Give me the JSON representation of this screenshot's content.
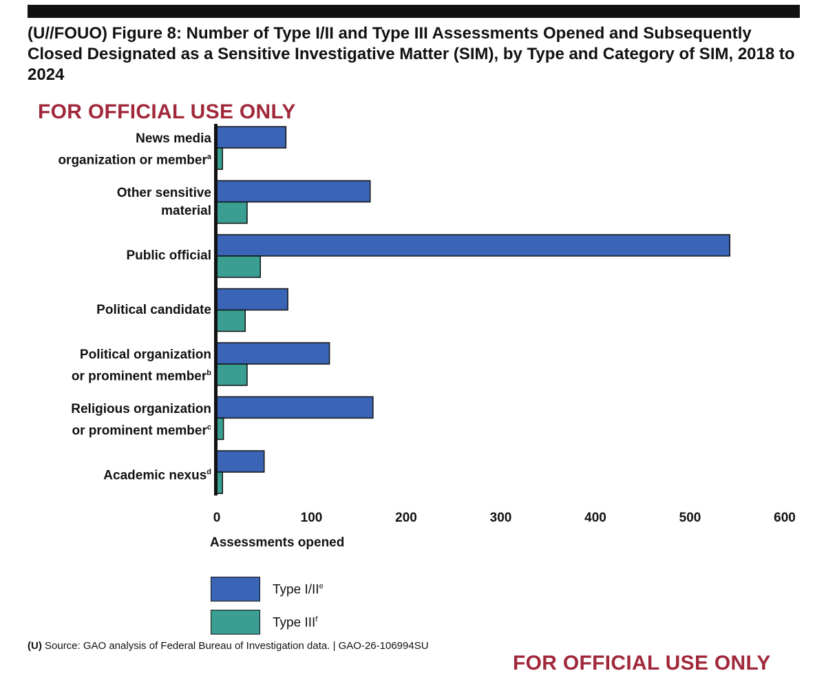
{
  "header": {
    "title": "(U//FOUO) Figure 8: Number of Type I/II and Type III Assessments Opened and Subsequently Closed Designated as a Sensitive Investigative Matter (SIM), by Type and Category of SIM, 2018 to 2024"
  },
  "marking_top": "FOR OFFICIAL USE ONLY",
  "marking_bottom": "FOR OFFICIAL USE ONLY",
  "source": {
    "prefix": "(U)",
    "text": "Source: GAO analysis of Federal Bureau of Investigation data.  |  GAO-26-106994SU"
  },
  "colors": {
    "type_1_2": "#3a64b5",
    "type_3": "#3a9f92",
    "marking": "#a0283a"
  },
  "chart_data": {
    "type": "bar",
    "orientation": "horizontal",
    "title": "(U//FOUO) Figure 8: Number of Type I/II and Type III Assessments Opened and Subsequently Closed Designated as a Sensitive Investigative Matter (SIM), by Type and Category of SIM, 2018 to 2024",
    "xlabel": "Assessments opened",
    "xlim": [
      0,
      600
    ],
    "xticks": [
      "0",
      "100",
      "200",
      "300",
      "400",
      "500",
      "600"
    ],
    "categories": [
      {
        "line1": "News media",
        "line2": "organization or member",
        "note": "a"
      },
      {
        "line1": "Other sensitive",
        "line2": "material",
        "note": ""
      },
      {
        "line1": "Public official",
        "line2": "",
        "note": ""
      },
      {
        "line1": "Political candidate",
        "line2": "",
        "note": ""
      },
      {
        "line1": "Political organization",
        "line2": "or prominent member",
        "note": "b"
      },
      {
        "line1": "Religious organization",
        "line2": "or prominent member",
        "note": "c"
      },
      {
        "line1": "Academic nexus",
        "line2": "",
        "note": "d"
      }
    ],
    "series": [
      {
        "name": "Type I/II",
        "note": "e",
        "values": [
          73,
          162,
          542,
          75,
          119,
          165,
          50
        ]
      },
      {
        "name": "Type III",
        "note": "f",
        "values": [
          6,
          32,
          46,
          30,
          32,
          7,
          6
        ]
      }
    ],
    "legend": "bottom-left",
    "grid": false
  }
}
